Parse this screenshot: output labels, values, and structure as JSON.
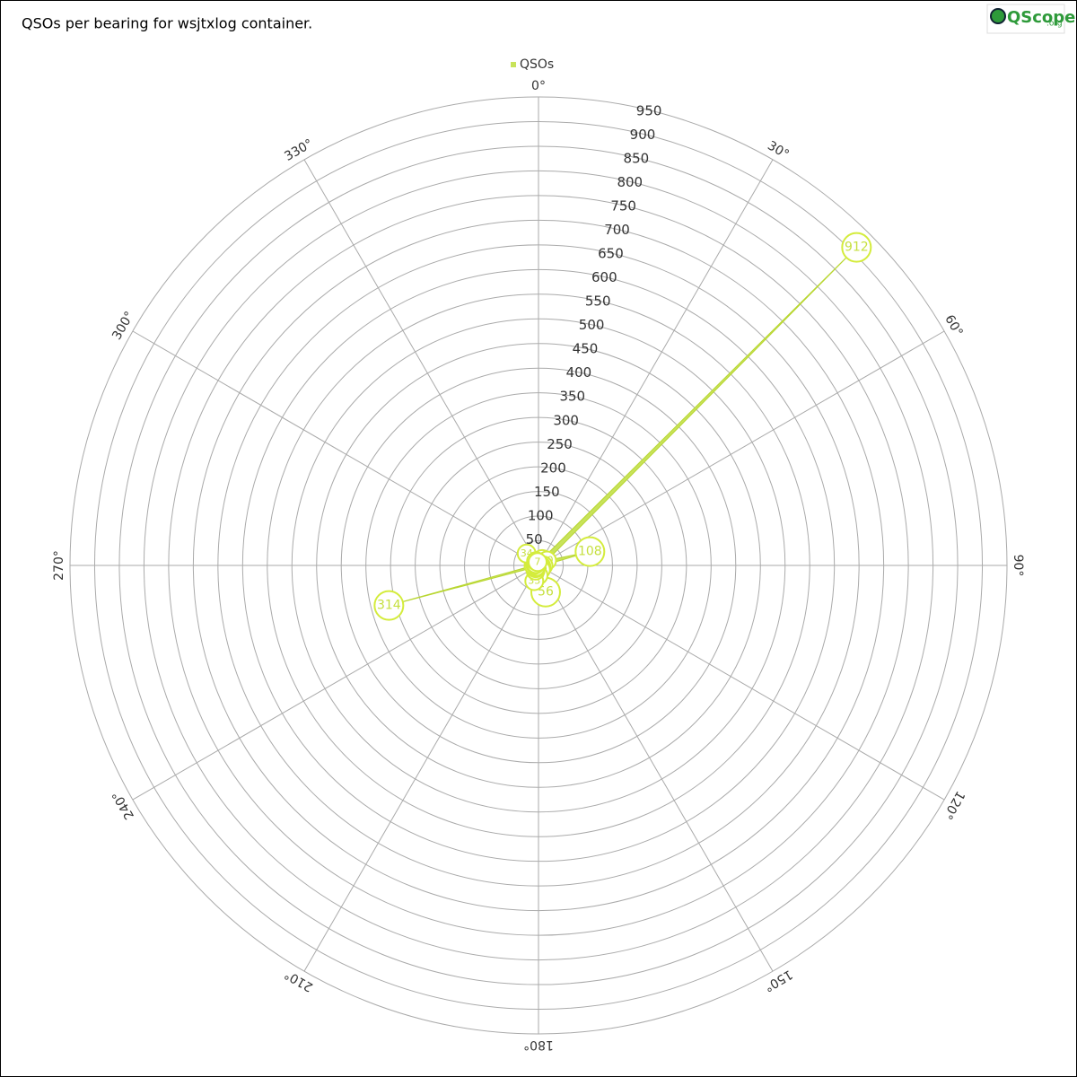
{
  "chart_data": {
    "type": "polar-area",
    "title": "QSOs per bearing for wsjtxlog container.",
    "logo": {
      "main": "QScope",
      "suffix": ".org"
    },
    "x": [
      0,
      15,
      30,
      45,
      60,
      75,
      90,
      105,
      120,
      135,
      150,
      165,
      180,
      195,
      210,
      225,
      240,
      255,
      270,
      285,
      300,
      315,
      330,
      345
    ],
    "series": [
      {
        "name": "QSOs",
        "color": "#c8e35a",
        "values": [
          5,
          8,
          15,
          912,
          20,
          108,
          10,
          6,
          5,
          8,
          10,
          56,
          20,
          33,
          12,
          8,
          6,
          314,
          10,
          7,
          6,
          34,
          10,
          7
        ]
      }
    ],
    "rlim": [
      0,
      950
    ],
    "rticks": [
      50,
      100,
      150,
      200,
      250,
      300,
      350,
      400,
      450,
      500,
      550,
      600,
      650,
      700,
      750,
      800,
      850,
      900,
      950
    ],
    "angle_ticks": [
      {
        "value": 0,
        "label": "0°"
      },
      {
        "value": 30,
        "label": "30°"
      },
      {
        "value": 60,
        "label": "60°"
      },
      {
        "value": 90,
        "label": "90°"
      },
      {
        "value": 120,
        "label": "120°"
      },
      {
        "value": 150,
        "label": "150°"
      },
      {
        "value": 180,
        "label": "180°"
      },
      {
        "value": 210,
        "label": "210°"
      },
      {
        "value": 240,
        "label": "240°"
      },
      {
        "value": 270,
        "label": "270°"
      },
      {
        "value": 300,
        "label": "300°"
      },
      {
        "value": 330,
        "label": "330°"
      }
    ],
    "grid": true,
    "legend": "top"
  }
}
